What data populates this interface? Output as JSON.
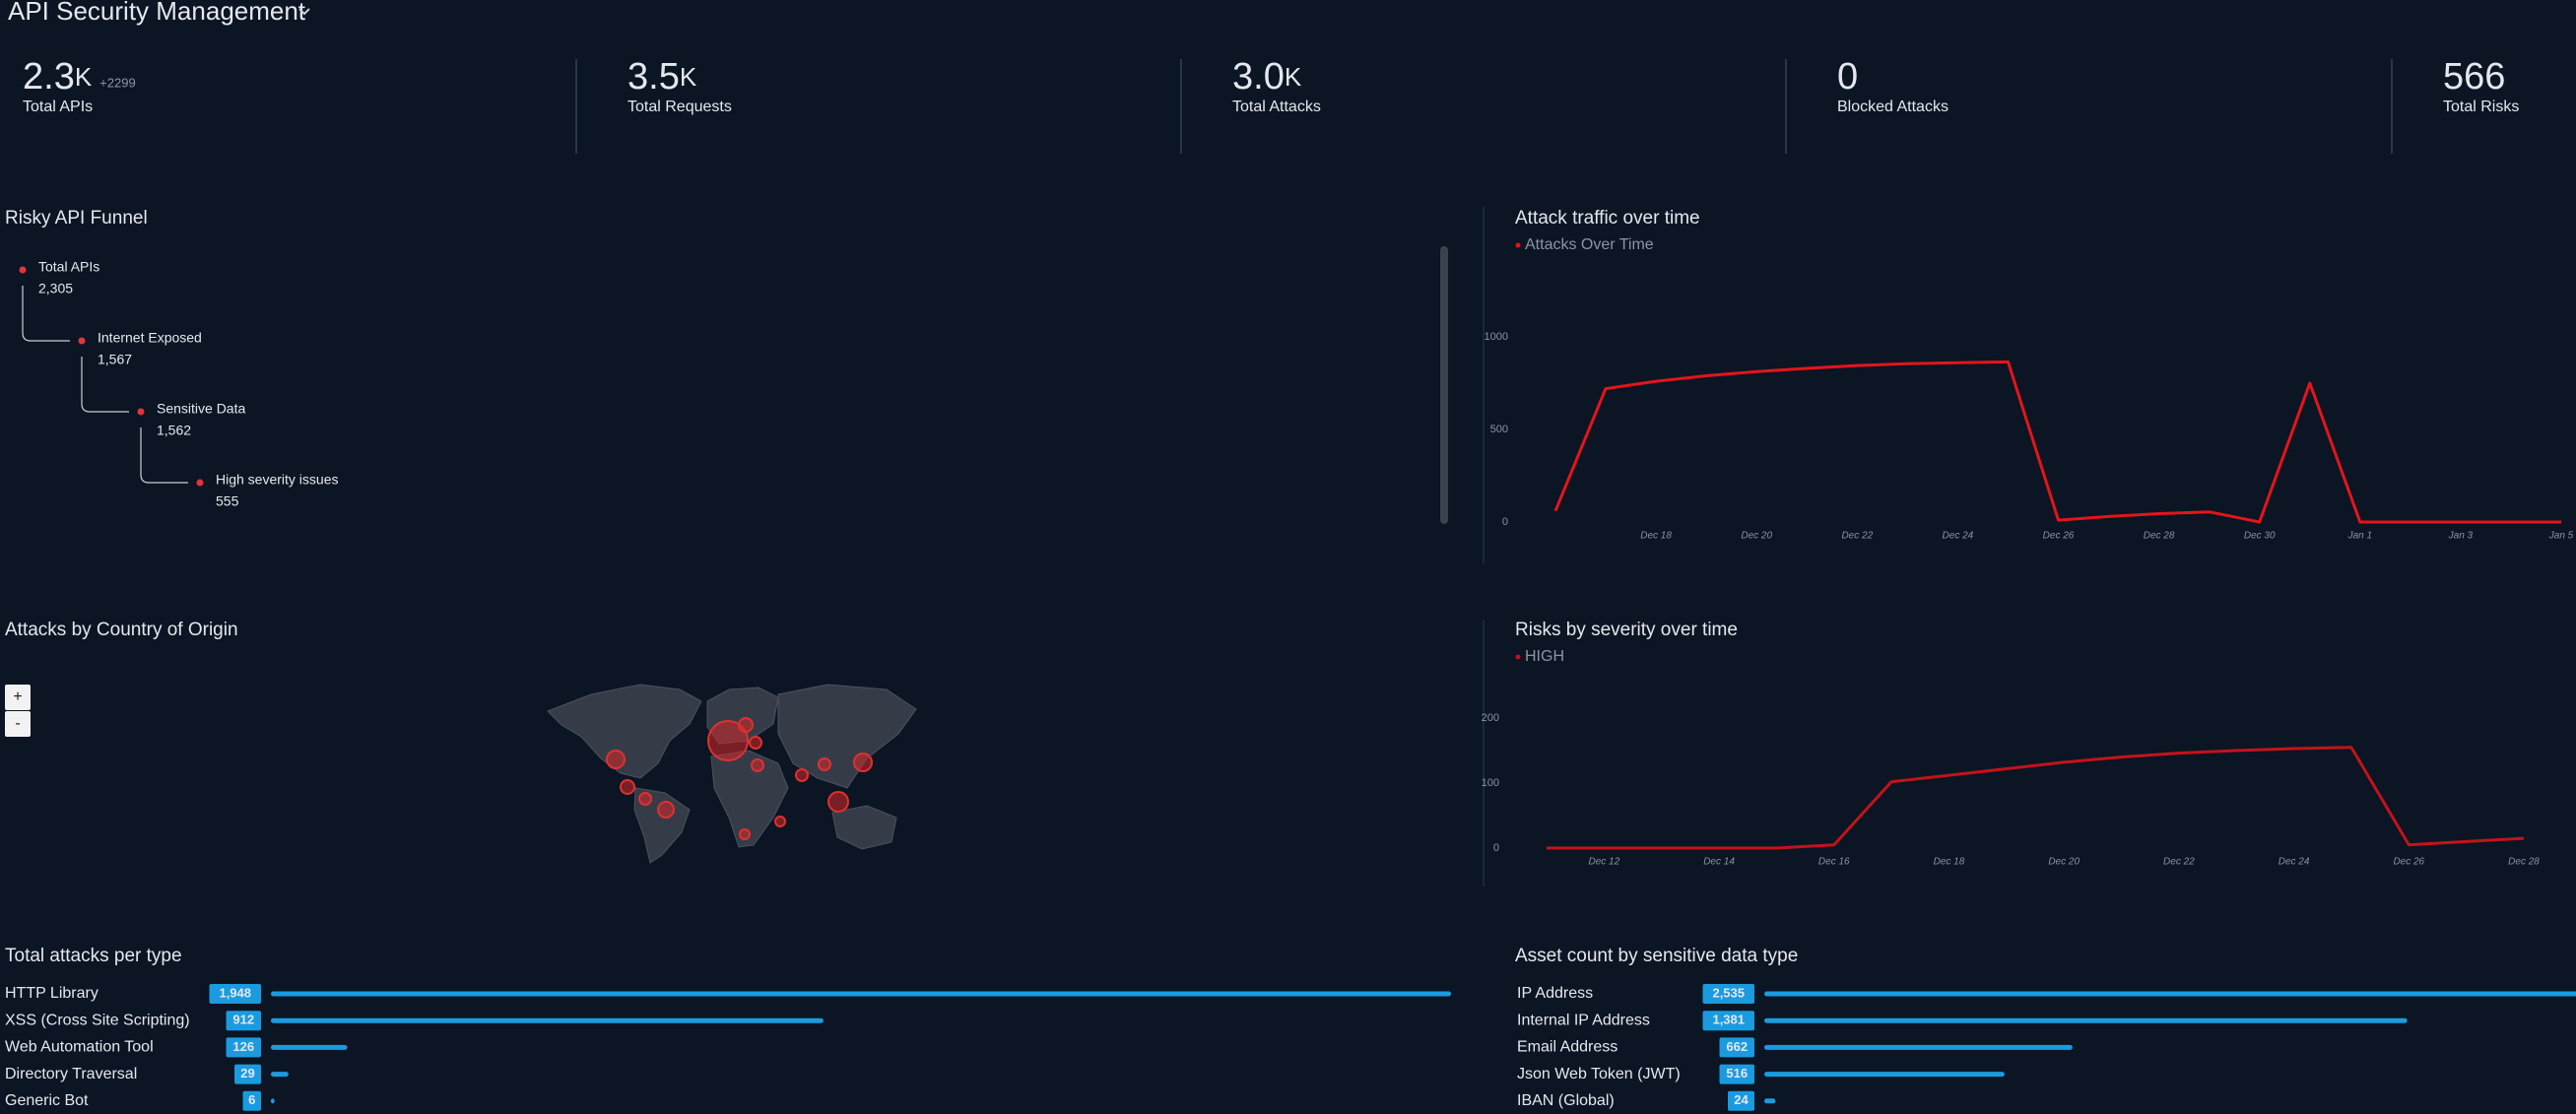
{
  "header": {
    "title": "API Security Management"
  },
  "kpis": [
    {
      "value": "2.3",
      "unit": "K",
      "delta": "+2299",
      "label": "Total APIs"
    },
    {
      "value": "3.5",
      "unit": "K",
      "label": "Total Requests"
    },
    {
      "value": "3.0",
      "unit": "K",
      "label": "Total Attacks"
    },
    {
      "value": "0",
      "label": "Blocked Attacks"
    },
    {
      "value": "566",
      "label": "Total Risks"
    }
  ],
  "funnel": {
    "title": "Risky API Funnel",
    "steps": [
      {
        "label": "Total APIs",
        "value": "2,305"
      },
      {
        "label": "Internet Exposed",
        "value": "1,567"
      },
      {
        "label": "Sensitive Data",
        "value": "1,562"
      },
      {
        "label": "High severity issues",
        "value": "555"
      }
    ]
  },
  "map": {
    "title": "Attacks by Country of Origin",
    "zoom_in": "+",
    "zoom_out": "-"
  },
  "chart_data": [
    {
      "type": "line",
      "title": "Attack traffic over time",
      "categories": [
        null,
        null,
        "Dec 18",
        null,
        "Dec 20",
        null,
        "Dec 22",
        null,
        "Dec 24",
        null,
        "Dec 26",
        null,
        "Dec 28",
        null,
        "Dec 30",
        null,
        "Jan 1",
        null,
        "Jan 3",
        null,
        "Jan 5"
      ],
      "series": [
        {
          "name": "Attacks Over Time",
          "color": "#e5141b",
          "values": [
            60,
            720,
            760,
            790,
            812,
            830,
            845,
            855,
            860,
            865,
            10,
            30,
            45,
            55,
            0,
            750,
            0,
            0,
            0,
            0,
            0
          ]
        }
      ],
      "ylim": [
        0,
        1000
      ],
      "yticks": [
        0,
        500,
        1000
      ]
    },
    {
      "type": "line",
      "title": "Risks by severity over time",
      "categories": [
        null,
        "Dec 12",
        null,
        "Dec 14",
        null,
        "Dec 16",
        null,
        "Dec 18",
        null,
        "Dec 20",
        null,
        "Dec 22",
        null,
        "Dec 24",
        null,
        "Dec 26",
        null,
        "Dec 28"
      ],
      "series": [
        {
          "name": "HIGH",
          "color": "#c4121a",
          "values": [
            0,
            0,
            0,
            0,
            0,
            5,
            102,
            112,
            122,
            132,
            140,
            146,
            150,
            153,
            155,
            5,
            10,
            15
          ]
        }
      ],
      "ylim": [
        0,
        200
      ],
      "yticks": [
        0,
        100,
        200
      ]
    },
    {
      "type": "hbar",
      "title": "Total attacks per type",
      "categories": [
        "HTTP Library",
        "XSS (Cross Site Scripting)",
        "Web Automation Tool",
        "Directory Traversal",
        "Generic Bot"
      ],
      "values": [
        1948,
        912,
        126,
        29,
        6
      ],
      "value_labels": [
        "1,948",
        "912",
        "126",
        "29",
        "6"
      ],
      "color": "#1a9be0"
    },
    {
      "type": "hbar",
      "title": "Asset count by sensitive data type",
      "categories": [
        "IP Address",
        "Internal IP Address",
        "Email Address",
        "Json Web Token (JWT)",
        "IBAN (Global)"
      ],
      "values": [
        2535,
        1381,
        662,
        516,
        24
      ],
      "value_labels": [
        "2,535",
        "1,381",
        "662",
        "516",
        "24"
      ],
      "color": "#1a9be0"
    }
  ]
}
